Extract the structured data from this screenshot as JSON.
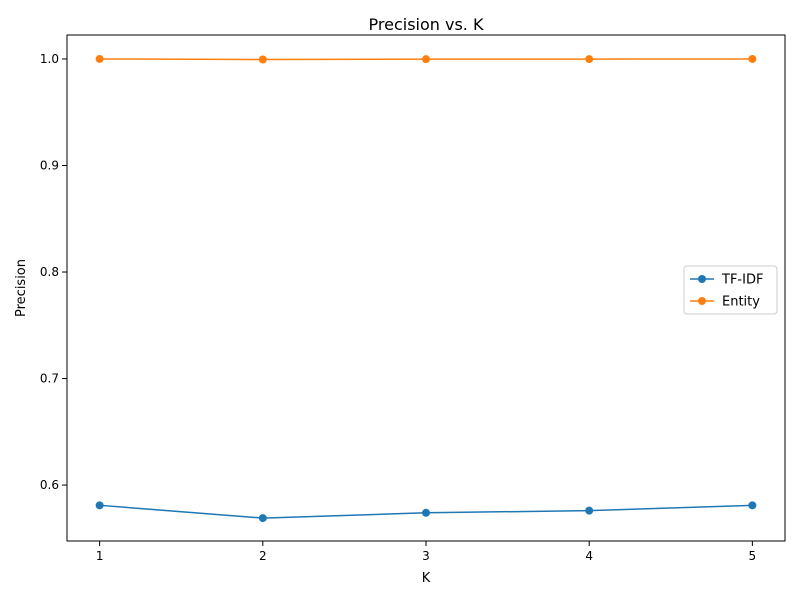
{
  "chart_data": {
    "type": "line",
    "title": "Precision vs. K",
    "xlabel": "K",
    "ylabel": "Precision",
    "x": [
      1,
      2,
      3,
      4,
      5
    ],
    "x_ticks": [
      "1",
      "2",
      "3",
      "4",
      "5"
    ],
    "y_ticks": [
      "0.6",
      "0.7",
      "0.8",
      "0.9",
      "1.0"
    ],
    "xlim": [
      0.8,
      5.2
    ],
    "ylim": [
      0.5475,
      1.0225
    ],
    "grid": false,
    "legend_position": "center-right",
    "series": [
      {
        "name": "TF-IDF",
        "color": "#1f77b4",
        "marker": "circle",
        "values": [
          0.581,
          0.569,
          0.574,
          0.576,
          0.581
        ]
      },
      {
        "name": "Entity",
        "color": "#ff7f0e",
        "marker": "circle",
        "values": [
          1.0,
          0.9995,
          0.9998,
          0.9999,
          1.0
        ]
      }
    ]
  }
}
